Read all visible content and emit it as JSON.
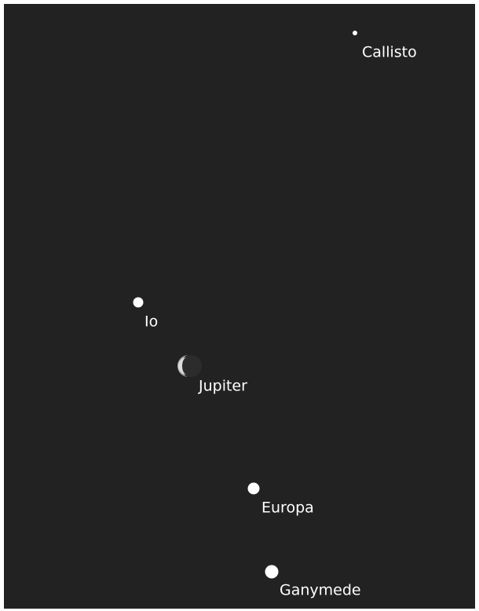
{
  "bodies": [
    {
      "label": "Callisto"
    },
    {
      "label": "Io"
    },
    {
      "label": "Jupiter"
    },
    {
      "label": "Europa"
    },
    {
      "label": "Ganymede"
    }
  ]
}
